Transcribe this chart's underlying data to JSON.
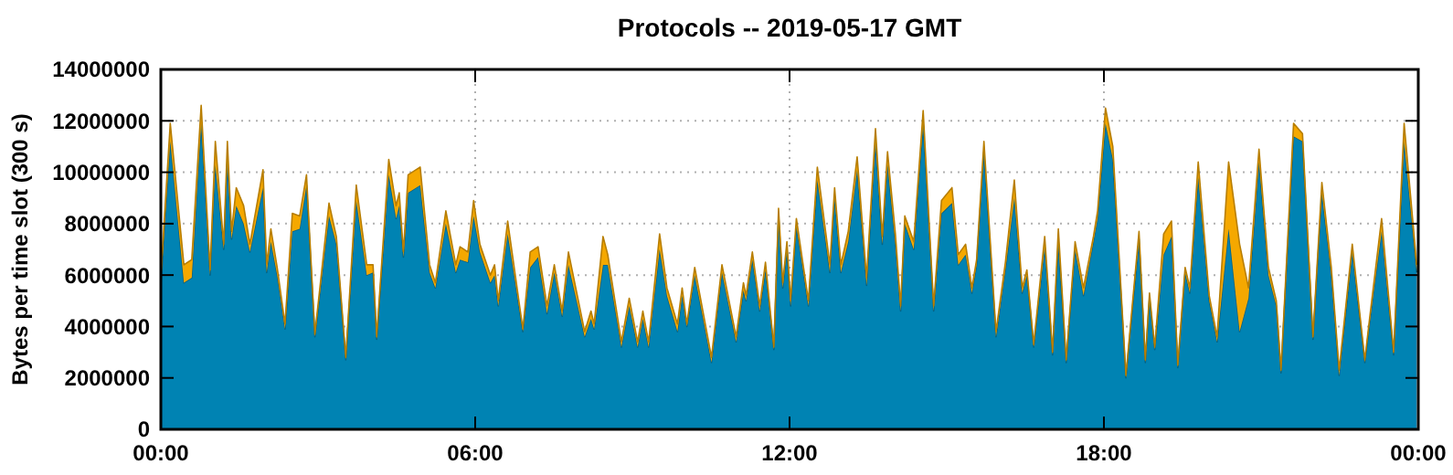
{
  "chart_data": {
    "type": "area",
    "stacked": true,
    "title": "Protocols -- 2019-05-17 GMT",
    "ylabel": "Bytes per time slot (300 s)",
    "x": [
      0,
      0.18,
      0.44,
      0.59,
      0.77,
      0.94,
      1.04,
      1.2,
      1.27,
      1.35,
      1.44,
      1.58,
      1.7,
      1.95,
      2.02,
      2.1,
      2.22,
      2.37,
      2.51,
      2.65,
      2.78,
      2.94,
      3.21,
      3.35,
      3.53,
      3.73,
      3.93,
      4.05,
      4.12,
      4.35,
      4.49,
      4.55,
      4.63,
      4.72,
      4.95,
      5.13,
      5.24,
      5.44,
      5.63,
      5.71,
      5.86,
      5.97,
      6.09,
      6.29,
      6.37,
      6.44,
      6.62,
      6.91,
      7.05,
      7.2,
      7.37,
      7.51,
      7.66,
      7.78,
      8.09,
      8.21,
      8.27,
      8.44,
      8.53,
      8.79,
      8.94,
      9.1,
      9.2,
      9.31,
      9.52,
      9.66,
      9.86,
      9.95,
      10.04,
      10.19,
      10.51,
      10.71,
      10.98,
      11.12,
      11.17,
      11.29,
      11.43,
      11.54,
      11.7,
      11.79,
      11.87,
      11.95,
      12.02,
      12.13,
      12.36,
      12.53,
      12.77,
      12.86,
      12.98,
      13.12,
      13.29,
      13.47,
      13.64,
      13.77,
      13.87,
      14.02,
      14.12,
      14.2,
      14.37,
      14.55,
      14.75,
      14.9,
      15.1,
      15.22,
      15.36,
      15.48,
      15.57,
      15.71,
      15.94,
      16.12,
      16.29,
      16.44,
      16.53,
      16.66,
      16.87,
      17.02,
      17.13,
      17.28,
      17.45,
      17.61,
      17.8,
      17.88,
      18.03,
      18.17,
      18.42,
      18.67,
      18.79,
      18.87,
      18.97,
      19.14,
      19.29,
      19.41,
      19.55,
      19.64,
      19.8,
      20.01,
      20.16,
      20.38,
      20.59,
      20.76,
      20.96,
      21.14,
      21.29,
      21.38,
      21.62,
      21.79,
      21.99,
      22.16,
      22.34,
      22.49,
      22.74,
      22.98,
      23.07,
      23.3,
      23.53,
      23.73,
      23.97
    ],
    "series": [
      {
        "color": "#0083b3",
        "values": [
          5600000,
          11200000,
          5700000,
          5900000,
          11900000,
          6000000,
          10300000,
          7000000,
          10500000,
          7400000,
          8700000,
          8000000,
          6900000,
          9400000,
          6100000,
          7300000,
          6000000,
          3900000,
          7700000,
          7800000,
          9500000,
          3600000,
          8300000,
          7200000,
          2700000,
          8900000,
          6000000,
          6100000,
          3500000,
          9900000,
          8200000,
          8700000,
          6700000,
          9200000,
          9500000,
          6100000,
          5500000,
          8000000,
          6100000,
          6600000,
          6500000,
          8300000,
          6900000,
          5700000,
          6000000,
          4800000,
          7600000,
          3800000,
          6300000,
          6700000,
          4500000,
          6100000,
          4400000,
          6400000,
          3600000,
          4300000,
          3900000,
          6400000,
          6400000,
          3200000,
          4800000,
          3200000,
          4300000,
          3200000,
          7000000,
          5200000,
          3800000,
          5200000,
          4000000,
          6000000,
          2600000,
          6100000,
          3400000,
          5400000,
          5000000,
          6600000,
          4600000,
          6200000,
          3100000,
          8300000,
          5500000,
          7000000,
          4800000,
          7900000,
          4800000,
          9700000,
          6100000,
          9000000,
          6100000,
          7300000,
          10100000,
          5600000,
          11200000,
          7200000,
          10300000,
          7200000,
          4600000,
          8000000,
          7000000,
          11900000,
          4600000,
          8400000,
          8800000,
          6400000,
          6800000,
          5300000,
          6400000,
          10800000,
          3600000,
          6200000,
          9000000,
          5300000,
          6000000,
          3200000,
          7100000,
          2900000,
          7300000,
          2600000,
          7000000,
          5200000,
          7300000,
          8200000,
          11900000,
          10500000,
          2000000,
          7400000,
          2600000,
          5100000,
          3100000,
          6800000,
          7500000,
          2400000,
          6100000,
          5300000,
          9800000,
          5000000,
          3400000,
          7800000,
          3800000,
          5100000,
          10400000,
          6000000,
          4800000,
          2200000,
          11400000,
          11200000,
          3500000,
          9200000,
          6000000,
          2100000,
          6900000,
          2600000,
          4100000,
          7700000,
          2900000,
          11200000,
          6100000
        ]
      },
      {
        "color": "#f5a800",
        "values": [
          400000,
          700000,
          700000,
          700000,
          700000,
          200000,
          900000,
          200000,
          700000,
          300000,
          700000,
          700000,
          300000,
          700000,
          300000,
          500000,
          300000,
          200000,
          700000,
          500000,
          400000,
          100000,
          500000,
          300000,
          100000,
          600000,
          400000,
          300000,
          100000,
          600000,
          500000,
          500000,
          200000,
          700000,
          700000,
          300000,
          200000,
          500000,
          300000,
          500000,
          400000,
          600000,
          300000,
          300000,
          400000,
          200000,
          500000,
          100000,
          600000,
          400000,
          300000,
          300000,
          200000,
          500000,
          200000,
          300000,
          200000,
          1100000,
          400000,
          200000,
          300000,
          200000,
          300000,
          200000,
          600000,
          300000,
          300000,
          300000,
          100000,
          300000,
          200000,
          300000,
          200000,
          300000,
          200000,
          300000,
          200000,
          300000,
          100000,
          300000,
          200000,
          300000,
          200000,
          300000,
          200000,
          500000,
          300000,
          400000,
          300000,
          400000,
          500000,
          300000,
          500000,
          300000,
          500000,
          400000,
          200000,
          300000,
          300000,
          500000,
          200000,
          500000,
          600000,
          400000,
          400000,
          200000,
          200000,
          400000,
          200000,
          300000,
          700000,
          200000,
          200000,
          100000,
          400000,
          100000,
          500000,
          100000,
          300000,
          300000,
          200000,
          300000,
          600000,
          500000,
          100000,
          300000,
          100000,
          200000,
          100000,
          800000,
          600000,
          100000,
          200000,
          200000,
          600000,
          200000,
          200000,
          2600000,
          3400000,
          400000,
          500000,
          300000,
          200000,
          100000,
          500000,
          300000,
          100000,
          400000,
          300000,
          200000,
          300000,
          100000,
          200000,
          500000,
          100000,
          700000,
          300000
        ]
      }
    ],
    "xlim": [
      0,
      24
    ],
    "xticks": [
      {
        "value": 0,
        "label": "00:00"
      },
      {
        "value": 6,
        "label": "06:00"
      },
      {
        "value": 12,
        "label": "12:00"
      },
      {
        "value": 18,
        "label": "18:00"
      },
      {
        "value": 24,
        "label": "00:00"
      }
    ],
    "ylim": [
      0,
      14000000
    ],
    "yticks": [
      0,
      2000000,
      4000000,
      6000000,
      8000000,
      10000000,
      12000000,
      14000000
    ],
    "grid": true
  }
}
